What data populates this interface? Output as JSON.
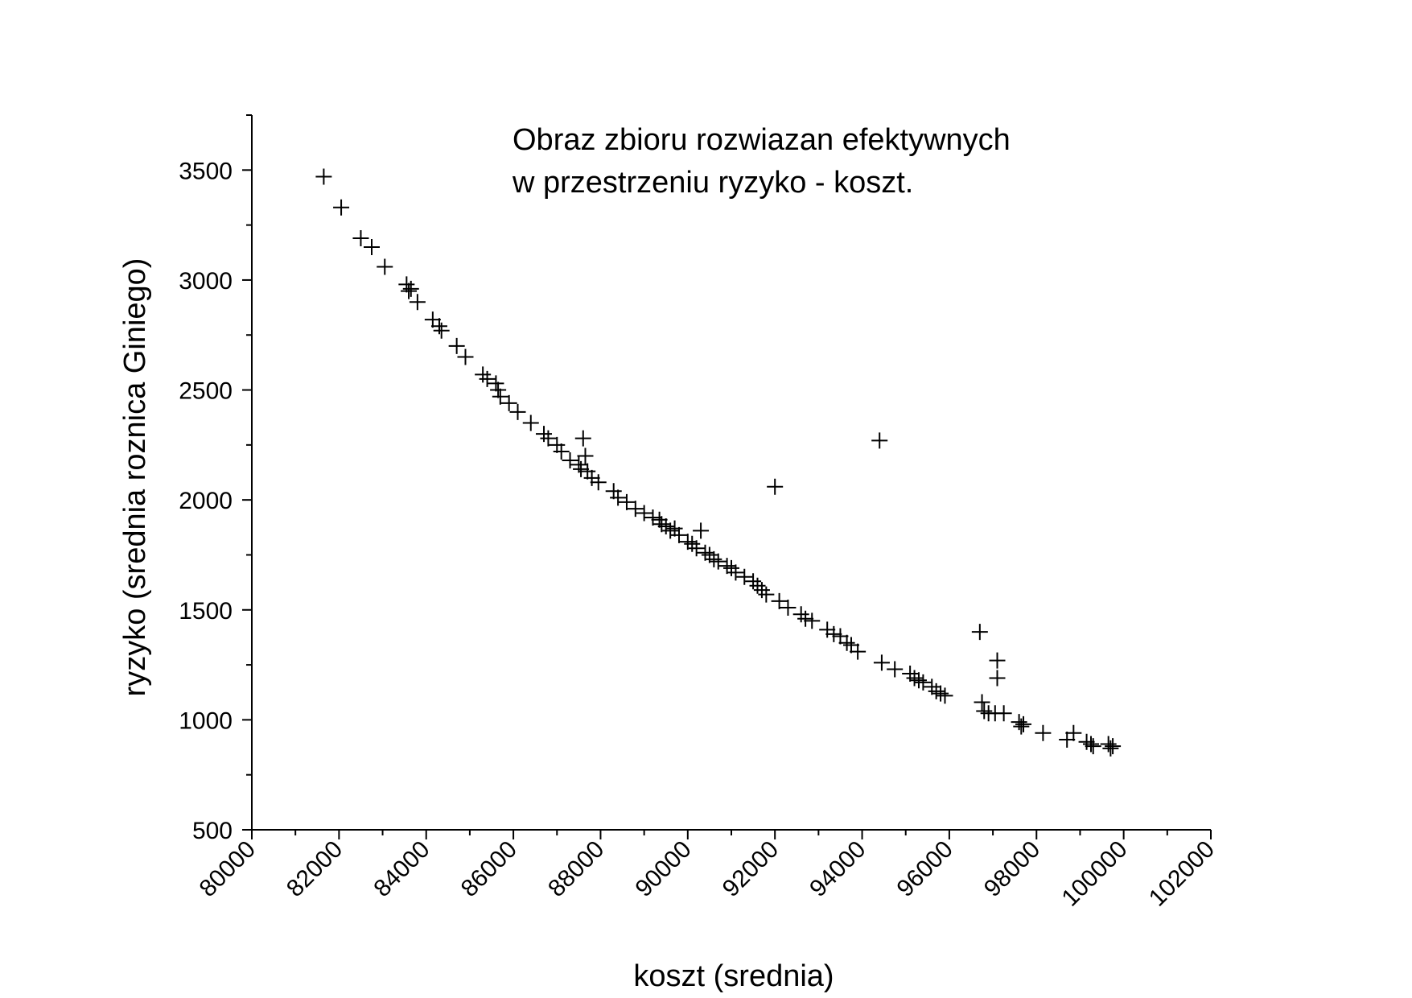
{
  "chart_data": {
    "type": "scatter",
    "title": "",
    "annotation": [
      "Obraz zbioru rozwiazan efektywnych",
      "w przestrzeniu ryzyko - koszt."
    ],
    "xlabel": "koszt (srednia)",
    "ylabel": "ryzyko (srednia roznica Giniego)",
    "xlim": [
      80000,
      102000
    ],
    "ylim": [
      500,
      3750
    ],
    "xticks": [
      80000,
      82000,
      84000,
      86000,
      88000,
      90000,
      92000,
      94000,
      96000,
      98000,
      100000,
      102000
    ],
    "yticks": [
      500,
      1000,
      1500,
      2000,
      2500,
      3000,
      3500
    ],
    "marker": "plus",
    "marker_color": "#000000",
    "grid": false,
    "legend": "none",
    "points": [
      [
        81650,
        3470
      ],
      [
        82050,
        3330
      ],
      [
        82500,
        3190
      ],
      [
        82750,
        3150
      ],
      [
        83050,
        3060
      ],
      [
        83550,
        2980
      ],
      [
        83600,
        2950
      ],
      [
        83650,
        2960
      ],
      [
        83800,
        2900
      ],
      [
        84150,
        2820
      ],
      [
        84300,
        2790
      ],
      [
        84350,
        2770
      ],
      [
        84700,
        2700
      ],
      [
        84900,
        2650
      ],
      [
        85300,
        2570
      ],
      [
        85400,
        2550
      ],
      [
        85600,
        2530
      ],
      [
        85650,
        2500
      ],
      [
        85700,
        2470
      ],
      [
        85900,
        2440
      ],
      [
        86100,
        2400
      ],
      [
        86400,
        2350
      ],
      [
        86700,
        2300
      ],
      [
        86800,
        2280
      ],
      [
        87000,
        2250
      ],
      [
        87100,
        2220
      ],
      [
        87300,
        2180
      ],
      [
        87500,
        2160
      ],
      [
        87550,
        2140
      ],
      [
        87600,
        2280
      ],
      [
        87650,
        2200
      ],
      [
        87700,
        2130
      ],
      [
        87800,
        2100
      ],
      [
        87950,
        2080
      ],
      [
        88300,
        2040
      ],
      [
        88400,
        2010
      ],
      [
        88600,
        1990
      ],
      [
        88800,
        1960
      ],
      [
        89000,
        1940
      ],
      [
        89200,
        1920
      ],
      [
        89350,
        1910
      ],
      [
        89400,
        1890
      ],
      [
        89500,
        1880
      ],
      [
        89600,
        1860
      ],
      [
        89700,
        1870
      ],
      [
        89800,
        1840
      ],
      [
        90000,
        1810
      ],
      [
        90100,
        1800
      ],
      [
        90200,
        1780
      ],
      [
        90300,
        1860
      ],
      [
        90400,
        1760
      ],
      [
        90500,
        1750
      ],
      [
        90600,
        1730
      ],
      [
        90700,
        1720
      ],
      [
        90900,
        1700
      ],
      [
        91000,
        1690
      ],
      [
        91100,
        1670
      ],
      [
        91300,
        1650
      ],
      [
        91500,
        1630
      ],
      [
        91600,
        1610
      ],
      [
        91700,
        1590
      ],
      [
        91800,
        1570
      ],
      [
        92000,
        2060
      ],
      [
        92100,
        1540
      ],
      [
        92300,
        1510
      ],
      [
        92600,
        1480
      ],
      [
        92700,
        1460
      ],
      [
        92850,
        1450
      ],
      [
        93200,
        1410
      ],
      [
        93350,
        1390
      ],
      [
        93500,
        1380
      ],
      [
        93650,
        1350
      ],
      [
        93750,
        1340
      ],
      [
        93900,
        1310
      ],
      [
        94400,
        2270
      ],
      [
        94450,
        1260
      ],
      [
        94750,
        1230
      ],
      [
        95100,
        1210
      ],
      [
        95200,
        1190
      ],
      [
        95300,
        1180
      ],
      [
        95400,
        1170
      ],
      [
        95600,
        1150
      ],
      [
        95700,
        1130
      ],
      [
        95800,
        1120
      ],
      [
        95900,
        1110
      ],
      [
        96700,
        1400
      ],
      [
        96750,
        1080
      ],
      [
        96800,
        1040
      ],
      [
        96900,
        1030
      ],
      [
        97050,
        1030
      ],
      [
        97100,
        1270
      ],
      [
        97100,
        1190
      ],
      [
        97250,
        1030
      ],
      [
        97600,
        990
      ],
      [
        97650,
        970
      ],
      [
        97700,
        980
      ],
      [
        98150,
        940
      ],
      [
        98700,
        910
      ],
      [
        98850,
        940
      ],
      [
        99150,
        900
      ],
      [
        99250,
        890
      ],
      [
        99300,
        880
      ],
      [
        99650,
        890
      ],
      [
        99700,
        870
      ],
      [
        99750,
        880
      ]
    ]
  }
}
